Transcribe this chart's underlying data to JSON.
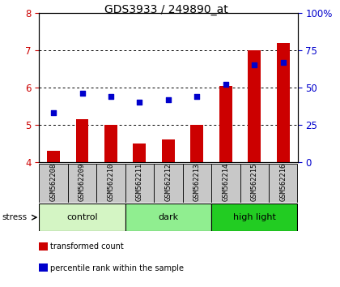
{
  "title": "GDS3933 / 249890_at",
  "samples": [
    "GSM562208",
    "GSM562209",
    "GSM562210",
    "GSM562211",
    "GSM562212",
    "GSM562213",
    "GSM562214",
    "GSM562215",
    "GSM562216"
  ],
  "transformed_counts": [
    4.3,
    5.15,
    5.0,
    4.5,
    4.6,
    5.0,
    6.05,
    7.0,
    7.2
  ],
  "percentile_ranks": [
    33,
    46,
    44,
    40,
    42,
    44,
    52,
    65,
    67
  ],
  "groups": [
    {
      "label": "control",
      "indices": [
        0,
        1,
        2
      ],
      "color": "#d4f5c4"
    },
    {
      "label": "dark",
      "indices": [
        3,
        4,
        5
      ],
      "color": "#90ee90"
    },
    {
      "label": "high light",
      "indices": [
        6,
        7,
        8
      ],
      "color": "#22cc22"
    }
  ],
  "ylim_left": [
    4,
    8
  ],
  "ylim_right": [
    0,
    100
  ],
  "yticks_left": [
    4,
    5,
    6,
    7,
    8
  ],
  "yticks_right": [
    0,
    25,
    50,
    75,
    100
  ],
  "yticklabels_right": [
    "0",
    "25",
    "50",
    "75",
    "100%"
  ],
  "bar_color": "#cc0000",
  "dot_color": "#0000cc",
  "bar_width": 0.45,
  "title_fontsize": 10,
  "axis_color_left": "#cc0000",
  "axis_color_right": "#0000cc",
  "stress_label": "stress",
  "legend_items": [
    {
      "color": "#cc0000",
      "label": "transformed count"
    },
    {
      "color": "#0000cc",
      "label": "percentile rank within the sample"
    }
  ],
  "bg_color_xticklabels": "#c8c8c8"
}
